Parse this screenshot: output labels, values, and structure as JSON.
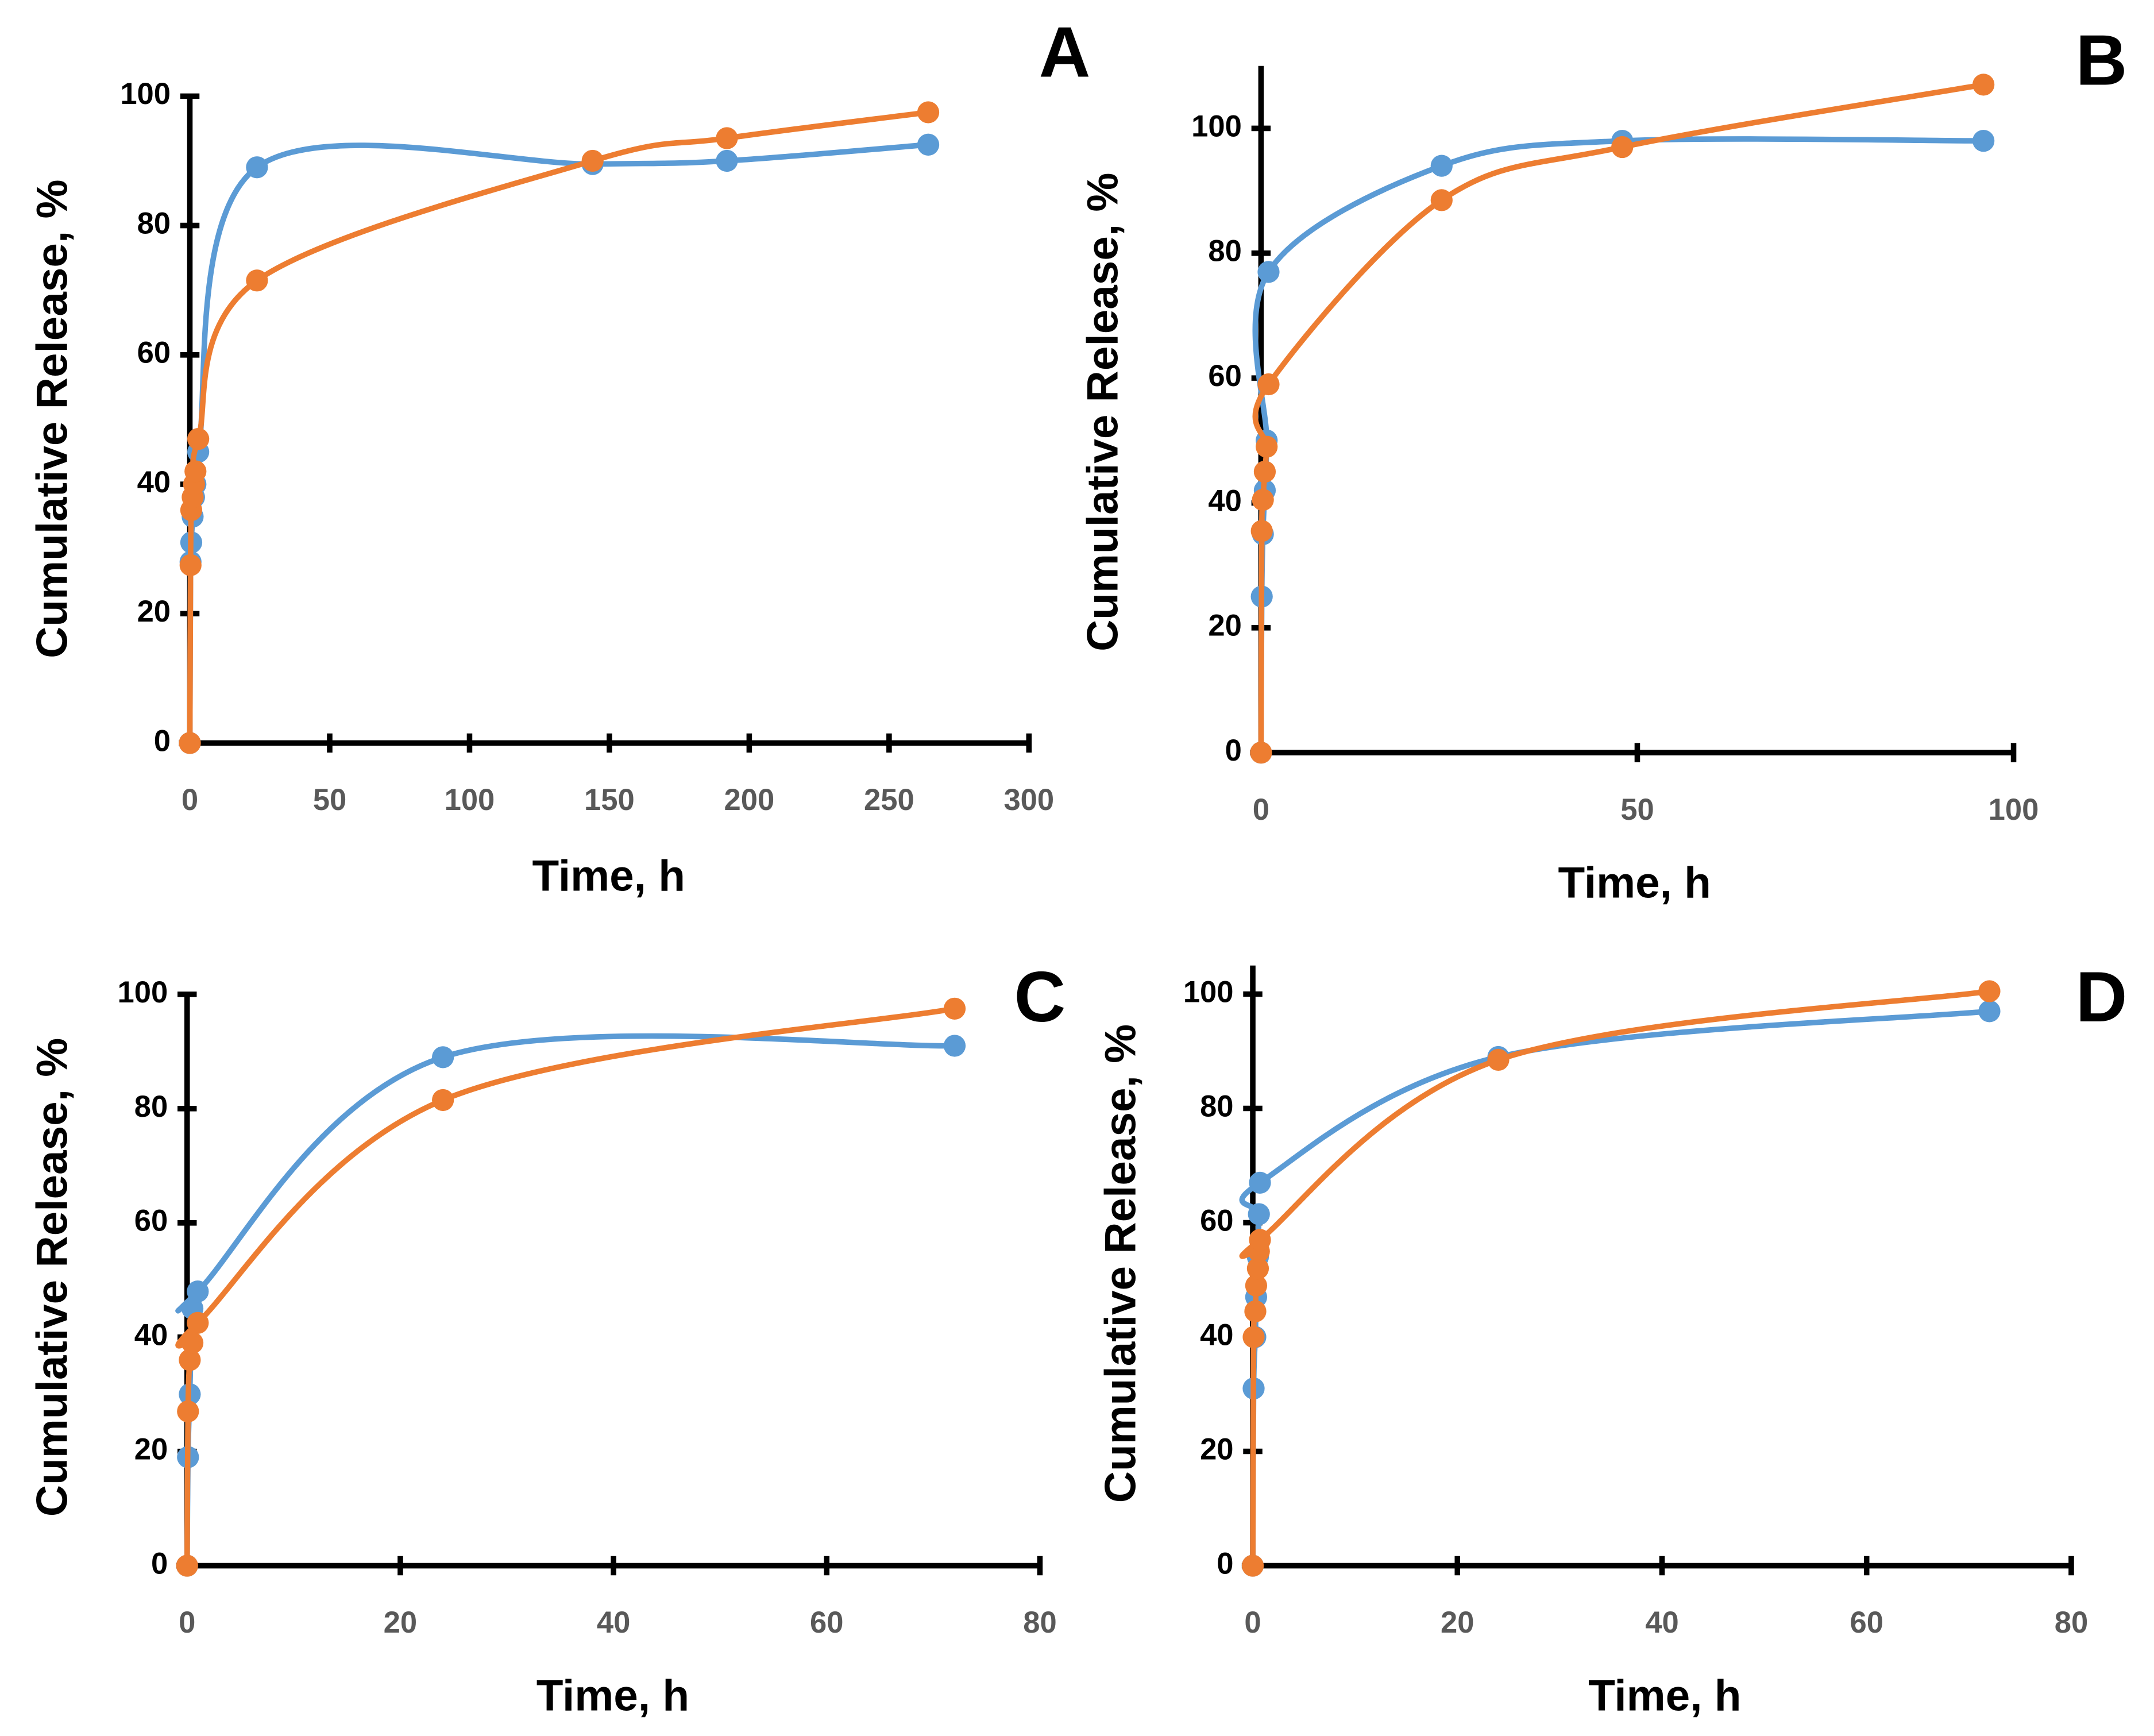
{
  "chart_data": [
    {
      "type": "line",
      "panel": "A",
      "xlabel": "Time, h",
      "ylabel": "Cumulative Release, %",
      "x": [
        0,
        0.25,
        0.5,
        1,
        1.5,
        2,
        3,
        24,
        144,
        192,
        264
      ],
      "series": [
        {
          "color": "#5b9bd5",
          "values": [
            0,
            28,
            31,
            35,
            38,
            40,
            45,
            89,
            89.5,
            90,
            92.5
          ]
        },
        {
          "color": "#ed7d31",
          "values": [
            0,
            27.5,
            36,
            38,
            40,
            42,
            47,
            71.5,
            90,
            93.5,
            97.5
          ]
        }
      ],
      "xlim": [
        0,
        300
      ],
      "xticks": [
        0,
        50,
        100,
        150,
        200,
        250,
        300
      ],
      "ylim": [
        0,
        100
      ],
      "yticks": [
        0,
        20,
        40,
        60,
        80,
        100
      ]
    },
    {
      "type": "line",
      "panel": "B",
      "xlabel": "Time, h",
      "ylabel": "Cumulative Release, %",
      "x": [
        0,
        0.1,
        0.25,
        0.5,
        0.75,
        1,
        24,
        48,
        96
      ],
      "series": [
        {
          "color": "#5b9bd5",
          "values": [
            0,
            25,
            35,
            42,
            50,
            77,
            94,
            98,
            98
          ]
        },
        {
          "color": "#ed7d31",
          "values": [
            0,
            35.5,
            40.5,
            45,
            49,
            59,
            88.5,
            97,
            107
          ]
        }
      ],
      "xlim": [
        0,
        100
      ],
      "xticks": [
        0,
        50,
        100
      ],
      "ylim": [
        0,
        110
      ],
      "yticks": [
        0,
        20,
        40,
        60,
        80,
        100
      ]
    },
    {
      "type": "line",
      "panel": "C",
      "xlabel": "Time, h",
      "ylabel": "Cumulative Release, %",
      "x": [
        0,
        0.083,
        0.25,
        0.5,
        1,
        24,
        72
      ],
      "series": [
        {
          "color": "#5b9bd5",
          "values": [
            0,
            19,
            30,
            45,
            48,
            89,
            91
          ]
        },
        {
          "color": "#ed7d31",
          "values": [
            0,
            27,
            36,
            39,
            42.5,
            81.5,
            97.5
          ]
        }
      ],
      "xlim": [
        0,
        80
      ],
      "xticks": [
        0,
        20,
        40,
        60,
        80
      ],
      "ylim": [
        0,
        100
      ],
      "yticks": [
        0,
        20,
        40,
        60,
        80,
        100
      ]
    },
    {
      "type": "line",
      "panel": "D",
      "xlabel": "Time, h",
      "ylabel": "Cumulative Release, %",
      "x": [
        0,
        0.083,
        0.25,
        0.33,
        0.5,
        0.6,
        0.7,
        24,
        72
      ],
      "series": [
        {
          "color": "#5b9bd5",
          "values": [
            0,
            31,
            40,
            47,
            54,
            61.5,
            67,
            89,
            97
          ]
        },
        {
          "color": "#ed7d31",
          "values": [
            0,
            40,
            44.5,
            49,
            52,
            55,
            57,
            88.5,
            100.5
          ]
        }
      ],
      "xlim": [
        0,
        80
      ],
      "xticks": [
        0,
        20,
        40,
        60,
        80
      ],
      "ylim": [
        0,
        105
      ],
      "yticks": [
        0,
        20,
        40,
        60,
        80,
        100
      ]
    }
  ]
}
